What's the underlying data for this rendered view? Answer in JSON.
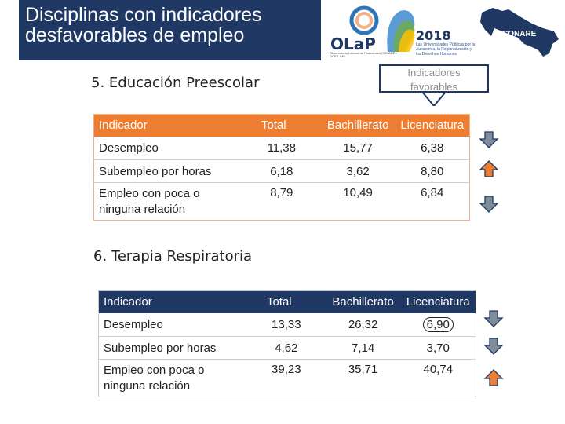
{
  "header": {
    "title_line1": "Disciplinas con indicadores",
    "title_line2": "desfavorables de empleo"
  },
  "logos": {
    "olap_text": "OLaP",
    "olap_sub": "Observatorio Laboral de Profesiones CONARE • OCES-IMS",
    "year": "2018",
    "year_sub": "Las Universidades Públicas por la Autonomía, la Regionalización y los Derechos Humanos",
    "conare": "CONARE"
  },
  "callout": {
    "line1": "Indicadores",
    "line2": "favorables"
  },
  "section1": {
    "title": "5. Educación Preescolar",
    "headers": [
      "Indicador",
      "Total",
      "Bachillerato",
      "Licenciatura"
    ],
    "rows": [
      {
        "indicator": "Desempleo",
        "total": "11,38",
        "bach": "15,77",
        "lic": "6,38",
        "arrow": "down"
      },
      {
        "indicator": "Subempleo por horas",
        "total": "6,18",
        "bach": "3,62",
        "lic": "8,80",
        "arrow": "up"
      },
      {
        "indicator_l1": "Empleo con poca o",
        "indicator_l2": "ninguna relación",
        "total": "8,79",
        "bach": "10,49",
        "lic": "6,84",
        "arrow": "down"
      }
    ]
  },
  "section2": {
    "title": "6. Terapia Respiratoria",
    "headers": [
      "Indicador",
      "Total",
      "Bachillerato",
      "Licenciatura"
    ],
    "rows": [
      {
        "indicator": "Desempleo",
        "total": "13,33",
        "bach": "26,32",
        "lic": "6,90",
        "arrow": "down"
      },
      {
        "indicator": "Subempleo por horas",
        "total": "4,62",
        "bach": "7,14",
        "lic": "3,70",
        "arrow": "down"
      },
      {
        "indicator_l1": "Empleo con poca o",
        "indicator_l2": "ninguna relación",
        "total": "39,23",
        "bach": "35,71",
        "lic": "40,74",
        "arrow": "up"
      }
    ]
  },
  "colors": {
    "down_arrow": "#7f8c9a",
    "up_arrow": "#ed7d31",
    "navy": "#1f3864",
    "orange": "#ed7d31"
  }
}
